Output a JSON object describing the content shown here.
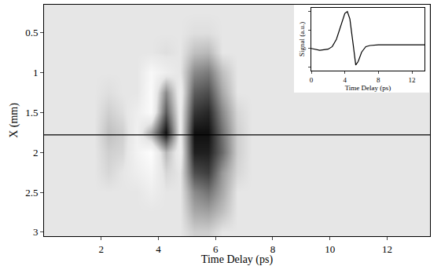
{
  "chart_data": [
    {
      "type": "heatmap",
      "xlabel": "Time Delay (ps)",
      "ylabel": "X (mm)",
      "x": [
        0.25,
        0.75,
        1.25,
        1.75,
        2.25,
        2.75,
        3.25,
        3.75,
        4.25,
        4.75,
        5.25,
        5.75,
        6.25,
        6.75,
        7.25,
        7.75,
        8.25,
        8.75,
        9.25,
        9.75,
        10.25,
        10.75,
        11.25,
        11.75,
        12.25,
        12.75,
        13.25
      ],
      "y": [
        0.25,
        0.5,
        0.75,
        1.0,
        1.25,
        1.5,
        1.75,
        2.0,
        2.25,
        2.5,
        2.75,
        3.0
      ],
      "cells": [
        [
          0,
          0,
          0,
          0,
          0,
          0,
          0,
          0,
          0,
          0,
          0,
          0,
          0,
          0,
          0,
          0,
          0,
          0,
          0,
          0,
          0,
          0,
          0,
          0,
          0,
          0,
          0
        ],
        [
          0,
          0,
          0,
          0,
          0,
          0,
          0,
          0,
          0,
          0,
          0.1,
          0.1,
          0,
          0,
          0,
          0,
          0,
          0,
          0,
          0,
          0,
          0,
          0,
          0,
          0,
          0,
          0
        ],
        [
          0,
          0,
          0,
          0,
          0,
          0,
          0,
          0,
          0.1,
          0,
          0.5,
          0.6,
          0,
          0,
          0,
          0,
          0,
          0,
          0,
          0,
          0,
          0,
          0,
          0,
          0,
          0,
          0
        ],
        [
          0,
          0,
          0,
          0,
          0,
          0,
          0,
          -0.7,
          -0.3,
          0,
          1.2,
          1.4,
          0.5,
          0,
          0,
          0,
          0,
          0,
          0,
          0,
          0,
          0,
          0,
          0,
          0,
          0,
          0
        ],
        [
          0,
          0,
          0,
          0,
          0.1,
          0,
          0,
          -0.8,
          1.2,
          -0.3,
          1.8,
          2.0,
          0.8,
          0,
          0,
          0,
          0,
          0,
          0,
          0,
          0,
          0,
          0,
          0,
          0,
          0,
          0
        ],
        [
          0,
          0,
          0,
          0,
          0.3,
          0.1,
          -0.3,
          -0.8,
          1.8,
          -0.2,
          2.3,
          2.5,
          1.2,
          0.2,
          0,
          0,
          0,
          0,
          0,
          0,
          0,
          0,
          0,
          0,
          0,
          0,
          0
        ],
        [
          0,
          0,
          0,
          0,
          0.5,
          0.3,
          -0.4,
          0.8,
          2.8,
          -0.2,
          2.8,
          2.8,
          1.5,
          0.3,
          0,
          0,
          0,
          0,
          0,
          0,
          0,
          0,
          0,
          0,
          0,
          0,
          0
        ],
        [
          0,
          0,
          0,
          0,
          0.3,
          0.2,
          -0.5,
          -0.9,
          0.6,
          -0.3,
          2.6,
          2.6,
          1.6,
          0.3,
          0,
          0,
          0,
          0,
          0,
          0,
          0,
          0,
          0,
          0,
          0,
          0,
          0
        ],
        [
          0,
          0,
          0,
          0,
          0.2,
          0,
          -0.3,
          -0.6,
          0.2,
          0,
          2.0,
          2.2,
          1.0,
          0.2,
          0,
          0,
          0,
          0,
          0,
          0,
          0,
          0,
          0,
          0,
          0,
          0,
          0
        ],
        [
          0,
          0,
          0,
          0,
          0,
          0,
          0,
          -0.3,
          0,
          0,
          1.2,
          1.5,
          0.8,
          0,
          0,
          0,
          0,
          0,
          0,
          0,
          0,
          0,
          0,
          0,
          0,
          0,
          0
        ],
        [
          0,
          0,
          0,
          0,
          0,
          0,
          0,
          0,
          0,
          0,
          0.8,
          0.9,
          0.5,
          0,
          0,
          0,
          0,
          0,
          0,
          0,
          0,
          0,
          0,
          0,
          0,
          0,
          0
        ],
        [
          0,
          0,
          0,
          0,
          0,
          0,
          0,
          0,
          0,
          0,
          0.3,
          0.3,
          0,
          0,
          0,
          0,
          0,
          0,
          0,
          0,
          0,
          0,
          0,
          0,
          0,
          0,
          0
        ]
      ],
      "zlim": [
        -1,
        3
      ],
      "hline": 1.78,
      "xlim": [
        0,
        13.5
      ],
      "xticks": [
        2,
        4,
        6,
        8,
        10,
        12
      ],
      "ylim": [
        3.05,
        0.15
      ],
      "yticks": [
        0.5,
        1,
        1.5,
        2,
        2.5,
        3
      ]
    },
    {
      "type": "line",
      "xlabel": "Time Delay (ps)",
      "ylabel": "Signal (a.u.)",
      "x": [
        0,
        1,
        2,
        2.5,
        3,
        3.5,
        4,
        4.3,
        4.6,
        5,
        5.3,
        5.6,
        6,
        6.5,
        7,
        8,
        9,
        10,
        11,
        12,
        13,
        13.5
      ],
      "values": [
        0,
        -0.05,
        -0.02,
        0.05,
        0.25,
        0.6,
        0.95,
        1.0,
        0.8,
        0.1,
        -0.45,
        -0.35,
        -0.1,
        0.05,
        0.08,
        0.1,
        0.1,
        0.1,
        0.1,
        0.1,
        0.1,
        0.1
      ],
      "color": "#000000",
      "xlim": [
        0,
        13.5
      ],
      "xticks": [
        0,
        4,
        8,
        12
      ],
      "ylim": [
        -0.6,
        1.1
      ],
      "tick_labels": "x"
    }
  ]
}
